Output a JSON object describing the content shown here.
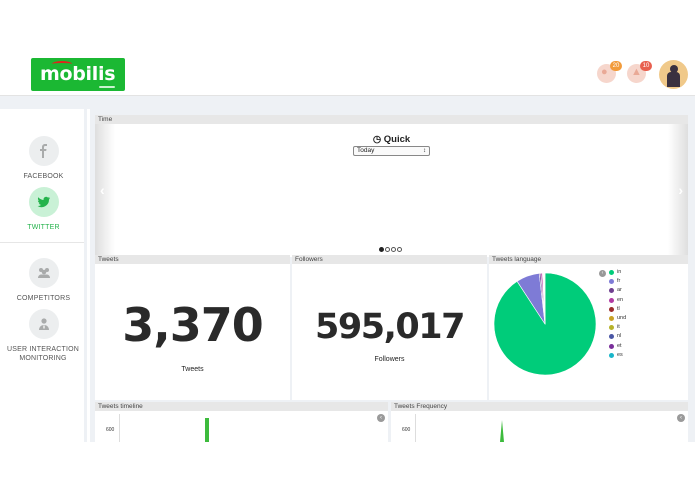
{
  "header": {
    "logo_text": "mobilis",
    "notifications": [
      {
        "icon": "chat-icon",
        "count": "20",
        "color": "#f29b3b"
      },
      {
        "icon": "bell-icon",
        "count": "10",
        "color": "#e8604f"
      }
    ]
  },
  "sidebar": {
    "items": [
      {
        "label": "FACEBOOK",
        "icon": "facebook-icon",
        "active": false
      },
      {
        "label": "TWITTER",
        "icon": "twitter-icon",
        "active": true
      },
      {
        "label": "COMPETITORS",
        "icon": "users-icon",
        "active": false
      },
      {
        "label": "USER INTERACTION MONITORING",
        "icon": "user-monitor-icon",
        "active": false
      }
    ]
  },
  "time_panel": {
    "title": "Time",
    "quick_label": "Quick",
    "selected_option": "Today",
    "slides_total": 4,
    "active_slide": 1
  },
  "tweets_panel": {
    "title": "Tweets",
    "value": "3,370",
    "caption": "Tweets"
  },
  "followers_panel": {
    "title": "Followers",
    "value": "595,017",
    "caption": "Followers"
  },
  "language_panel": {
    "title": "Tweets language"
  },
  "timeline_panel": {
    "title": "Tweets timeline",
    "y_tick": "600"
  },
  "frequency_panel": {
    "title": "Tweets Frequency",
    "y_tick": "600"
  },
  "colors": {
    "brand": "#1bb833",
    "accent": "#25b34c",
    "pie_main": "#00cc7a"
  },
  "chart_data": [
    {
      "type": "pie",
      "title": "Tweets language",
      "categories": [
        "in",
        "fr",
        "ar",
        "en",
        "tl",
        "und",
        "it",
        "nl",
        "et",
        "es"
      ],
      "values": [
        90.8,
        7.4,
        0.5,
        0.5,
        0.2,
        0.2,
        0.1,
        0.1,
        0.1,
        0.1
      ],
      "colors": [
        "#00cc7a",
        "#7e7bd6",
        "#6f3f8f",
        "#b03aa3",
        "#9b2c2c",
        "#c9a226",
        "#b6b22a",
        "#4a57a5",
        "#7a2f9a",
        "#19b5c9"
      ],
      "legend": "right"
    }
  ]
}
